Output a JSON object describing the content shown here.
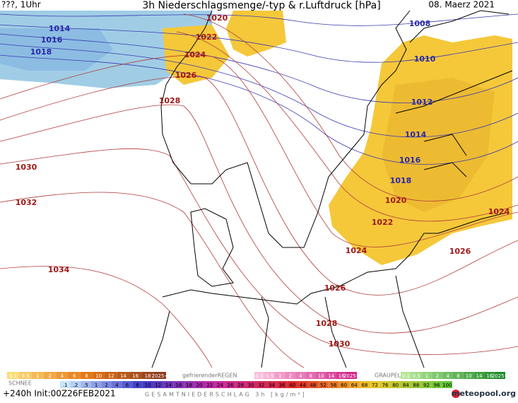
{
  "header": {
    "left": "???, 1Uhr",
    "title": "3h Niederschlagsmenge/-typ & r.Luftdruck [hPa]",
    "date": "08. Maerz 2021"
  },
  "isobar_labels": [
    "1020",
    "1022",
    "1024",
    "1026",
    "1028",
    "1014",
    "1016",
    "1018",
    "1008",
    "1010",
    "1012",
    "1014",
    "1016",
    "1018",
    "1020",
    "1022",
    "1024",
    "1024",
    "1026",
    "1026",
    "1028",
    "1030",
    "1030",
    "1032",
    "1034"
  ],
  "legend": {
    "rain": [
      "0.1",
      "0.5",
      "1",
      "2",
      "4",
      "6",
      "8",
      "10",
      "12",
      "14",
      "16",
      "18",
      "2025+"
    ],
    "freezing_title": "gefrierenderREGEN",
    "freezing": [
      "0.1",
      "0.5",
      "1",
      "2",
      "4",
      "8",
      "10",
      "14",
      "16",
      "2025+"
    ],
    "graupel_title": "GRAUPEL",
    "graupel": [
      "0.1",
      "0.5",
      "1",
      "2",
      "4",
      "8",
      "10",
      "14",
      "16",
      "2025+"
    ],
    "snow_title": "SCHNEE",
    "total": [
      ".1",
      ".2",
      ".5",
      "1",
      "2",
      "4",
      "6",
      "8",
      "10",
      "12",
      "14",
      "16",
      "18",
      "20",
      "22",
      "24",
      "26",
      "28",
      "30",
      "32",
      "34",
      "36",
      "40",
      "44",
      "48",
      "52",
      "56",
      "60",
      "64",
      "68",
      "72",
      "76",
      "80",
      "84",
      "88",
      "92",
      "96",
      "100"
    ]
  },
  "footer": {
    "run": "+240h Init:00Z26FEB2021",
    "total_title": "GESAMTNIEDERSCHLAG 3h [kg/m²]",
    "brand": "meteopool.org"
  }
}
